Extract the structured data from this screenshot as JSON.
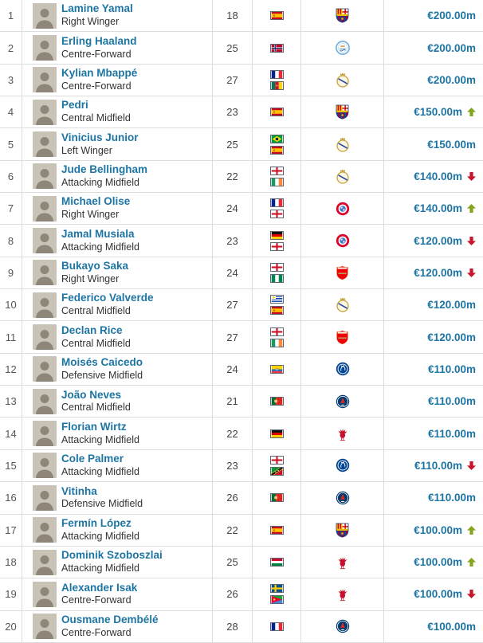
{
  "colors": {
    "player_link": "#1d75a3",
    "market_value_text": "#1d75a3",
    "trend_up": "#84a41d",
    "trend_down": "#c9132b",
    "row_border": "#dddddd",
    "position_text": "#333333",
    "rank_text": "#555555"
  },
  "table": {
    "rows": [
      {
        "rank": "1",
        "name": "Lamine Yamal",
        "position": "Right Winger",
        "age": "18",
        "nationalities": [
          "Spain"
        ],
        "club": "FC Barcelona",
        "value": "€200.00m",
        "trend": null
      },
      {
        "rank": "2",
        "name": "Erling Haaland",
        "position": "Centre-Forward",
        "age": "25",
        "nationalities": [
          "Norway"
        ],
        "club": "Manchester City",
        "value": "€200.00m",
        "trend": null
      },
      {
        "rank": "3",
        "name": "Kylian Mbappé",
        "position": "Centre-Forward",
        "age": "27",
        "nationalities": [
          "France",
          "Cameroon"
        ],
        "club": "Real Madrid",
        "value": "€200.00m",
        "trend": null
      },
      {
        "rank": "4",
        "name": "Pedri",
        "position": "Central Midfield",
        "age": "23",
        "nationalities": [
          "Spain"
        ],
        "club": "FC Barcelona",
        "value": "€150.00m",
        "trend": "up"
      },
      {
        "rank": "5",
        "name": "Vinicius Junior",
        "position": "Left Winger",
        "age": "25",
        "nationalities": [
          "Brazil",
          "Spain"
        ],
        "club": "Real Madrid",
        "value": "€150.00m",
        "trend": null
      },
      {
        "rank": "6",
        "name": "Jude Bellingham",
        "position": "Attacking Midfield",
        "age": "22",
        "nationalities": [
          "England",
          "Ireland"
        ],
        "club": "Real Madrid",
        "value": "€140.00m",
        "trend": "down"
      },
      {
        "rank": "7",
        "name": "Michael Olise",
        "position": "Right Winger",
        "age": "24",
        "nationalities": [
          "France",
          "England"
        ],
        "club": "Bayern Munich",
        "value": "€140.00m",
        "trend": "up"
      },
      {
        "rank": "8",
        "name": "Jamal Musiala",
        "position": "Attacking Midfield",
        "age": "23",
        "nationalities": [
          "Germany",
          "England"
        ],
        "club": "Bayern Munich",
        "value": "€120.00m",
        "trend": "down"
      },
      {
        "rank": "9",
        "name": "Bukayo Saka",
        "position": "Right Winger",
        "age": "24",
        "nationalities": [
          "England",
          "Nigeria"
        ],
        "club": "Arsenal FC",
        "value": "€120.00m",
        "trend": "down"
      },
      {
        "rank": "10",
        "name": "Federico Valverde",
        "position": "Central Midfield",
        "age": "27",
        "nationalities": [
          "Uruguay",
          "Spain"
        ],
        "club": "Real Madrid",
        "value": "€120.00m",
        "trend": null
      },
      {
        "rank": "11",
        "name": "Declan Rice",
        "position": "Central Midfield",
        "age": "27",
        "nationalities": [
          "England",
          "Ireland"
        ],
        "club": "Arsenal FC",
        "value": "€120.00m",
        "trend": null
      },
      {
        "rank": "12",
        "name": "Moisés Caicedo",
        "position": "Defensive Midfield",
        "age": "24",
        "nationalities": [
          "Ecuador"
        ],
        "club": "Chelsea FC",
        "value": "€110.00m",
        "trend": null
      },
      {
        "rank": "13",
        "name": "João Neves",
        "position": "Central Midfield",
        "age": "21",
        "nationalities": [
          "Portugal"
        ],
        "club": "Paris Saint-Germain",
        "value": "€110.00m",
        "trend": null
      },
      {
        "rank": "14",
        "name": "Florian Wirtz",
        "position": "Attacking Midfield",
        "age": "22",
        "nationalities": [
          "Germany"
        ],
        "club": "Liverpool FC",
        "value": "€110.00m",
        "trend": null
      },
      {
        "rank": "15",
        "name": "Cole Palmer",
        "position": "Attacking Midfield",
        "age": "23",
        "nationalities": [
          "England",
          "St. Kitts & Nevis"
        ],
        "club": "Chelsea FC",
        "value": "€110.00m",
        "trend": "down"
      },
      {
        "rank": "16",
        "name": "Vitinha",
        "position": "Defensive Midfield",
        "age": "26",
        "nationalities": [
          "Portugal"
        ],
        "club": "Paris Saint-Germain",
        "value": "€110.00m",
        "trend": null
      },
      {
        "rank": "17",
        "name": "Fermín López",
        "position": "Attacking Midfield",
        "age": "22",
        "nationalities": [
          "Spain"
        ],
        "club": "FC Barcelona",
        "value": "€100.00m",
        "trend": "up"
      },
      {
        "rank": "18",
        "name": "Dominik Szoboszlai",
        "position": "Attacking Midfield",
        "age": "25",
        "nationalities": [
          "Hungary"
        ],
        "club": "Liverpool FC",
        "value": "€100.00m",
        "trend": "up"
      },
      {
        "rank": "19",
        "name": "Alexander Isak",
        "position": "Centre-Forward",
        "age": "26",
        "nationalities": [
          "Sweden",
          "Eritrea"
        ],
        "club": "Liverpool FC",
        "value": "€100.00m",
        "trend": "down"
      },
      {
        "rank": "20",
        "name": "Ousmane Dembélé",
        "position": "Centre-Forward",
        "age": "28",
        "nationalities": [
          "France"
        ],
        "club": "Paris Saint-Germain",
        "value": "€100.00m",
        "trend": null
      }
    ]
  }
}
